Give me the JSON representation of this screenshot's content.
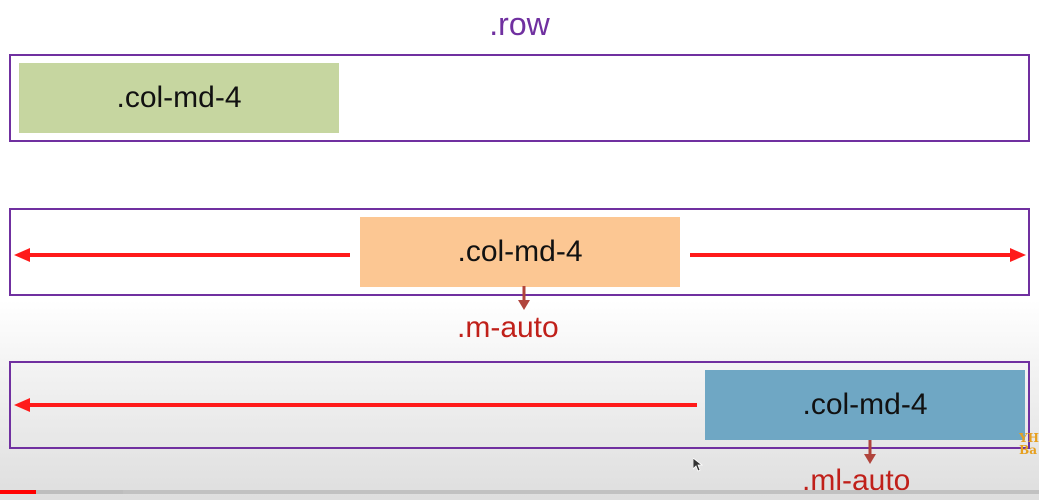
{
  "title": ".row",
  "rows": [
    {
      "column_label": ".col-md-4",
      "column_color": "#c6d6a0"
    },
    {
      "column_label": ".col-md-4",
      "column_color": "#fcc793",
      "utility_label": ".m-auto"
    },
    {
      "column_label": ".col-md-4",
      "column_color": "#6fa7c4",
      "utility_label": ".ml-auto"
    }
  ],
  "colors": {
    "border": "#7030a0",
    "arrow": "#ff1a1a",
    "label": "#c0201a"
  },
  "logo": {
    "line1": "YH",
    "line2": "Ba"
  },
  "video_progress": {
    "played_fraction": 0.035,
    "buffered_fraction": 0.118
  }
}
